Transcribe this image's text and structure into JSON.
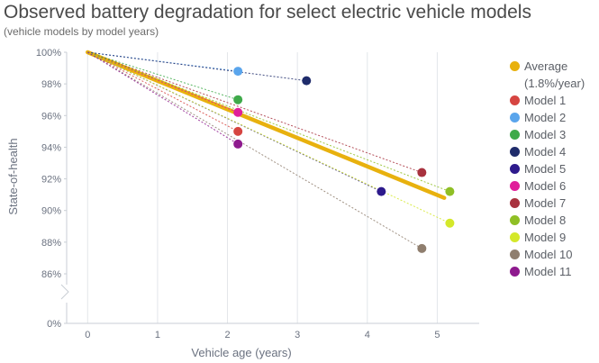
{
  "chart_data": {
    "type": "scatter",
    "title": "Observed battery degradation for select electric vehicle models",
    "subtitle": "(vehicle models by model years)",
    "xlabel": "Vehicle age (years)",
    "ylabel": "State-of-health",
    "xlim": [
      -0.3,
      5.6
    ],
    "ylim": [
      85,
      100
    ],
    "x_ticks": [
      "0",
      "1",
      "2",
      "3",
      "4",
      "5"
    ],
    "y_ticks": [
      "100%",
      "98%",
      "96%",
      "94%",
      "92%",
      "90%",
      "88%",
      "86%",
      "0%"
    ],
    "axis_break": true,
    "grid": "vertical",
    "legend_position": "right",
    "trend_origin": {
      "x": 0,
      "y": 100
    },
    "series": [
      {
        "name": "Average (1.8%/year)",
        "color": "#e8b10e",
        "trend_end": {
          "x": 5.1,
          "y": 90.8
        },
        "thick": true
      },
      {
        "name": "Model 1",
        "color": "#d64541",
        "x": 2.15,
        "y": 95.0
      },
      {
        "name": "Model 2",
        "color": "#5aa5ec",
        "x": 2.15,
        "y": 98.8
      },
      {
        "name": "Model 3",
        "color": "#3faa4a",
        "x": 2.15,
        "y": 97.0
      },
      {
        "name": "Model 4",
        "color": "#1f2c6b",
        "x": 3.13,
        "y": 98.2
      },
      {
        "name": "Model 5",
        "color": "#2d1a8c",
        "x": 4.2,
        "y": 91.2
      },
      {
        "name": "Model 6",
        "color": "#e01e9a",
        "x": 2.15,
        "y": 96.2
      },
      {
        "name": "Model 7",
        "color": "#a8323e",
        "x": 4.78,
        "y": 92.4
      },
      {
        "name": "Model 8",
        "color": "#8fbf25",
        "x": 5.18,
        "y": 91.2
      },
      {
        "name": "Model 9",
        "color": "#d4e82a",
        "x": 5.18,
        "y": 89.2
      },
      {
        "name": "Model 10",
        "color": "#8f7e6e",
        "x": 4.78,
        "y": 87.6
      },
      {
        "name": "Model 11",
        "color": "#8e1a8e",
        "x": 2.15,
        "y": 94.2
      }
    ]
  }
}
